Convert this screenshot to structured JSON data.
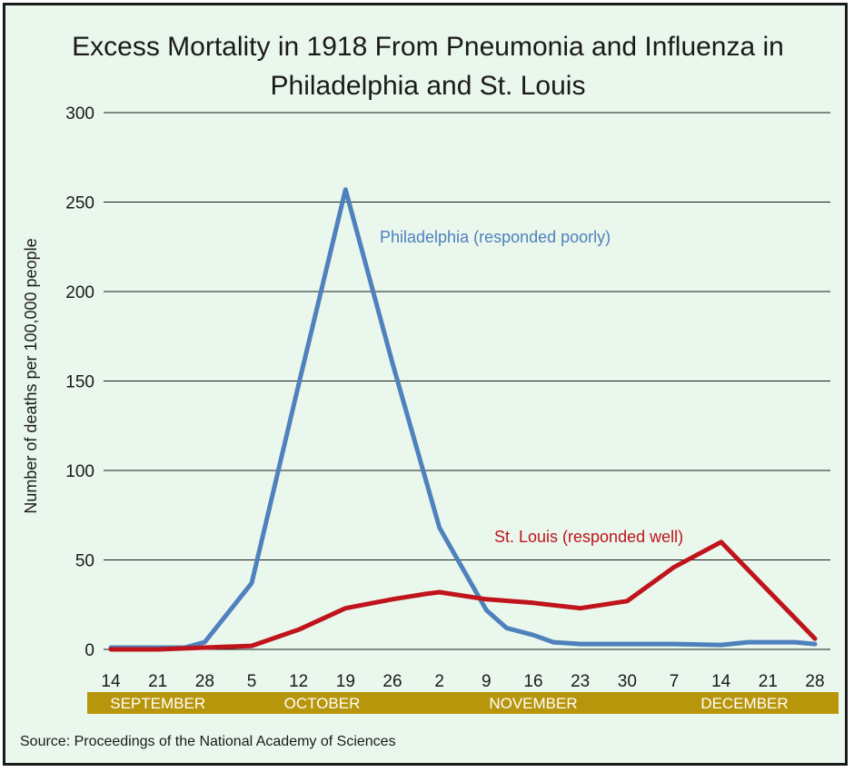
{
  "chart_data": {
    "type": "line",
    "title": "Excess Mortality in 1918 From Pneumonia and Influenza in Philadelphia and St. Louis",
    "ylabel": "Number of deaths per 100,000 people",
    "xlabel": "",
    "ylim": [
      0,
      300
    ],
    "y_ticks": [
      "0",
      "50",
      "100",
      "150",
      "200",
      "250",
      "300"
    ],
    "x_tick_labels": [
      "14",
      "21",
      "28",
      "5",
      "12",
      "19",
      "26",
      "2",
      "9",
      "16",
      "23",
      "30",
      "7",
      "14",
      "21",
      "28"
    ],
    "x_dates": [
      "1918-09-14",
      "1918-09-21",
      "1918-09-28",
      "1918-10-05",
      "1918-10-12",
      "1918-10-19",
      "1918-10-26",
      "1918-11-02",
      "1918-11-09",
      "1918-11-16",
      "1918-11-23",
      "1918-11-30",
      "1918-12-07",
      "1918-12-14",
      "1918-12-21",
      "1918-12-28"
    ],
    "months": [
      {
        "label": "SEPTEMBER",
        "from": "1918-09-14",
        "to": "1918-09-28"
      },
      {
        "label": "OCTOBER",
        "from": "1918-10-05",
        "to": "1918-10-26"
      },
      {
        "label": "NOVEMBER",
        "from": "1918-11-02",
        "to": "1918-11-30"
      },
      {
        "label": "DECEMBER",
        "from": "1918-12-07",
        "to": "1918-12-28"
      }
    ],
    "grid": true,
    "series": [
      {
        "name": "Philadelphia (responded poorly)",
        "color": "#4f81bd",
        "points": [
          [
            "1918-09-14",
            1
          ],
          [
            "1918-09-21",
            1
          ],
          [
            "1918-09-25",
            1
          ],
          [
            "1918-09-28",
            4
          ],
          [
            "1918-10-05",
            37
          ],
          [
            "1918-10-12",
            148
          ],
          [
            "1918-10-19",
            257
          ],
          [
            "1918-10-26",
            160
          ],
          [
            "1918-11-02",
            68
          ],
          [
            "1918-11-09",
            22
          ],
          [
            "1918-11-12",
            12
          ],
          [
            "1918-11-16",
            8
          ],
          [
            "1918-11-19",
            4
          ],
          [
            "1918-11-23",
            3
          ],
          [
            "1918-11-30",
            3
          ],
          [
            "1918-12-07",
            3
          ],
          [
            "1918-12-14",
            2.5
          ],
          [
            "1918-12-18",
            4
          ],
          [
            "1918-12-21",
            4
          ],
          [
            "1918-12-25",
            4
          ],
          [
            "1918-12-28",
            3
          ]
        ]
      },
      {
        "name": "St. Louis (responded well)",
        "color": "#c0141c",
        "points": [
          [
            "1918-09-14",
            0
          ],
          [
            "1918-09-21",
            0
          ],
          [
            "1918-09-28",
            1
          ],
          [
            "1918-10-05",
            2
          ],
          [
            "1918-10-12",
            11
          ],
          [
            "1918-10-19",
            23
          ],
          [
            "1918-10-26",
            28
          ],
          [
            "1918-10-31",
            31
          ],
          [
            "1918-11-02",
            32
          ],
          [
            "1918-11-09",
            28
          ],
          [
            "1918-11-16",
            26
          ],
          [
            "1918-11-23",
            23
          ],
          [
            "1918-11-30",
            27
          ],
          [
            "1918-12-07",
            46
          ],
          [
            "1918-12-14",
            60
          ],
          [
            "1918-12-21",
            33
          ],
          [
            "1918-12-28",
            6
          ]
        ]
      }
    ],
    "annotations": [
      {
        "text": "Philadelphia (responded poorly)",
        "series": 0
      },
      {
        "text": "St. Louis (responded well)",
        "series": 1
      }
    ],
    "source": "Source: Proceedings of the National Academy of Sciences",
    "colors": {
      "background": "#eaf7ec",
      "grid": "#1a1a1a",
      "month_band": "#b8960c",
      "month_text": "#ffffff"
    }
  }
}
